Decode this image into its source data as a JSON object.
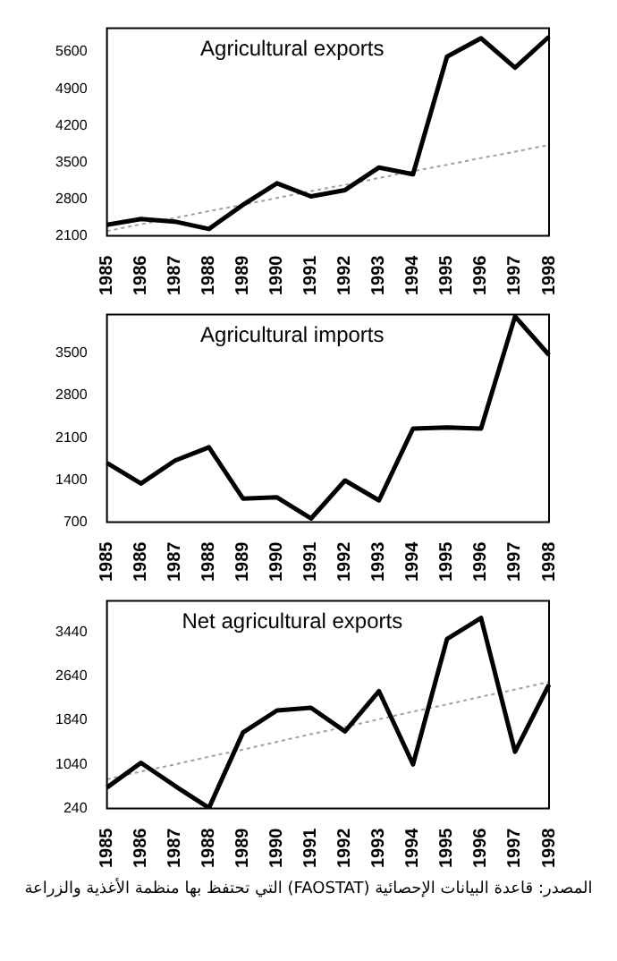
{
  "chart_data": [
    {
      "type": "line",
      "title": "Agricultural exports",
      "categories": [
        "1985",
        "1986",
        "1987",
        "1988",
        "1989",
        "1990",
        "1991",
        "1992",
        "1993",
        "1994",
        "1995",
        "1996",
        "1997",
        "1998"
      ],
      "series": [
        {
          "color": "#000000",
          "values": [
            2310,
            2420,
            2370,
            2230,
            2690,
            3100,
            2850,
            2970,
            3400,
            3270,
            5510,
            5860,
            5300,
            5890
          ]
        },
        {
          "type": "line",
          "values": [
            2190,
            2320,
            2440,
            2570,
            2690,
            2820,
            2950,
            3070,
            3200,
            3330,
            3450,
            3580,
            3700,
            3830
          ],
          "color": "#a0a0a0",
          "line_style": "dotted"
        }
      ],
      "ylim": [
        2100,
        6050
      ],
      "yticks": [
        2100,
        2800,
        3500,
        4200,
        4900,
        5600
      ],
      "grid": false,
      "legend": false,
      "marker": "none"
    },
    {
      "type": "line",
      "title": "Agricultural imports",
      "categories": [
        "1985",
        "1986",
        "1987",
        "1988",
        "1989",
        "1990",
        "1991",
        "1992",
        "1993",
        "1994",
        "1995",
        "1996",
        "1997",
        "1998"
      ],
      "series": [
        {
          "color": "#000000",
          "values": [
            1680,
            1340,
            1720,
            1940,
            1090,
            1110,
            760,
            1390,
            1060,
            2250,
            2270,
            2250,
            4110,
            3470
          ]
        }
      ],
      "ylim": [
        700,
        4140
      ],
      "yticks": [
        700,
        1400,
        2100,
        2800,
        3500
      ],
      "grid": false,
      "legend": false,
      "marker": "none"
    },
    {
      "type": "line",
      "title": "Net agricultural exports",
      "categories": [
        "1985",
        "1986",
        "1987",
        "1988",
        "1989",
        "1990",
        "1991",
        "1992",
        "1993",
        "1994",
        "1995",
        "1996",
        "1997",
        "1998"
      ],
      "series": [
        {
          "color": "#000000",
          "values": [
            620,
            1070,
            650,
            250,
            1620,
            2020,
            2070,
            1640,
            2370,
            1040,
            3320,
            3700,
            1270,
            2490
          ]
        },
        {
          "type": "line",
          "values": [
            770,
            910,
            1040,
            1180,
            1310,
            1450,
            1590,
            1720,
            1860,
            2000,
            2130,
            2270,
            2400,
            2540
          ],
          "color": "#a0a0a0",
          "line_style": "dotted"
        }
      ],
      "ylim": [
        240,
        4010
      ],
      "yticks": [
        240,
        1040,
        1840,
        2640,
        3440
      ],
      "grid": false,
      "legend": false,
      "marker": "none",
      "annotations": [
        "المصدر: قاعدة البيانات الإحصائية (FAOSTAT) التي تحتفظ بها منظمة الأغذية والزراعة"
      ]
    }
  ]
}
